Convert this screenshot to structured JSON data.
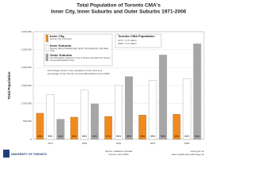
{
  "chart_data": {
    "type": "bar",
    "title": "Total Population of Toronto CMA's",
    "subtitle": "Inner City, Inner Suburbs and Outer Suburbs 1971-2006",
    "y_label": "Total Population",
    "categories": [
      "1971",
      "1981",
      "1991",
      "2001",
      "2006"
    ],
    "series": [
      {
        "name": "Inner City",
        "description": "(Former City of Toronto)",
        "color": "#f08a1c",
        "values": [
          730000,
          620000,
          640000,
          680000,
          700000
        ],
        "percent_labels": [
          "29%",
          "21%",
          "17%",
          "15%",
          "14%"
        ]
      },
      {
        "name": "Inner Suburbs",
        "description": "(Former cities of Scarborough, North York, Etobicoke, York, East York)",
        "color": "#ffffff",
        "values": [
          1250000,
          1370000,
          1500000,
          1650000,
          1690000
        ],
        "percent_labels": [
          "50%",
          "46%",
          "39%",
          "35%",
          "33%"
        ]
      },
      {
        "name": "Outer Suburbs",
        "description": "(the '905 Region' adjacent to City of Toronto and within the Toronto Census Metropolitan Area)",
        "color": "#a6a6a6",
        "values": [
          560000,
          990000,
          1750000,
          2350000,
          2660000
        ],
        "percent_labels": [
          "21%",
          "33%",
          "45%",
          "50%",
          "53%"
        ]
      }
    ],
    "ylim": [
      0,
      3000000
    ],
    "yticks": [
      0,
      {
        "value": 500000,
        "label": "500,000"
      },
      {
        "value": 1000000,
        "label": "1,000,000"
      },
      {
        "value": 1500000,
        "label": "1,500,000"
      },
      {
        "value": 2000000,
        "label": "2,000,000"
      },
      {
        "value": 2500000,
        "label": "2,500,000"
      },
      {
        "value": 3000000,
        "label": "3,000,000"
      }
    ],
    "grid": true,
    "cma_box": {
      "title": "Toronto CMA Population",
      "lines": [
        "1971 = 2.6 million",
        "2006 = 5.1 million"
      ]
    },
    "note": "Percentage shown is the population of the area as a percentage of the Toronto Census Metropolitan Area (CMA)",
    "source": [
      "Source: Statistics Canada",
      "Census 1971-2006"
    ],
    "links": [
      "www.gtuc.ca",
      "www.neighbourhoodchange.ca"
    ],
    "logo": "UNIVERSITY OF TORONTO"
  }
}
